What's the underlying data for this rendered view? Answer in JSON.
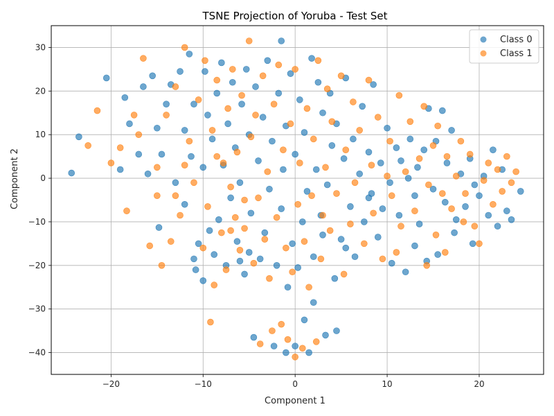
{
  "chart_data": {
    "type": "scatter",
    "title": "TSNE Projection of Yoruba - Test Set",
    "xlabel": "Component 1",
    "ylabel": "Component 2",
    "xlim": [
      -26.5,
      27
    ],
    "ylim": [
      -45,
      35
    ],
    "xticks": [
      -20,
      -10,
      0,
      10,
      20
    ],
    "yticks": [
      -40,
      -30,
      -20,
      -10,
      0,
      10,
      20,
      30
    ],
    "grid": true,
    "legend_position": "top-right",
    "series": [
      {
        "name": "Class 0",
        "color": "#1f77b4",
        "points": [
          [
            -24.3,
            1.2
          ],
          [
            -23.5,
            9.5
          ],
          [
            -20.5,
            23.0
          ],
          [
            -18.5,
            18.5
          ],
          [
            -18.0,
            12.5
          ],
          [
            -17.0,
            5.5
          ],
          [
            -16.5,
            21.0
          ],
          [
            -15.5,
            23.5
          ],
          [
            -15.0,
            11.5
          ],
          [
            -14.8,
            -11.3
          ],
          [
            -14.5,
            5.5
          ],
          [
            -14.0,
            17.0
          ],
          [
            -13.5,
            21.5
          ],
          [
            -13.0,
            -1.0
          ],
          [
            -12.5,
            24.5
          ],
          [
            -12.0,
            11.0
          ],
          [
            -11.5,
            28.5
          ],
          [
            -11.3,
            5.0
          ],
          [
            -11.0,
            17.0
          ],
          [
            -10.8,
            -21.0
          ],
          [
            -10.5,
            -15.0
          ],
          [
            -10.0,
            -23.5
          ],
          [
            -10.0,
            2.5
          ],
          [
            -9.8,
            24.5
          ],
          [
            -9.5,
            14.5
          ],
          [
            -9.3,
            -12.0
          ],
          [
            -9.0,
            9.0
          ],
          [
            -8.8,
            -17.5
          ],
          [
            -8.5,
            19.5
          ],
          [
            -8.3,
            -9.5
          ],
          [
            -8.0,
            26.5
          ],
          [
            -7.8,
            3.0
          ],
          [
            -7.5,
            -20.0
          ],
          [
            -7.3,
            12.5
          ],
          [
            -7.0,
            -4.5
          ],
          [
            -6.8,
            22.0
          ],
          [
            -6.5,
            7.0
          ],
          [
            -6.3,
            -14.5
          ],
          [
            -6.0,
            -1.0
          ],
          [
            -5.8,
            17.0
          ],
          [
            -5.5,
            -22.0
          ],
          [
            -5.3,
            25.0
          ],
          [
            -5.0,
            10.0
          ],
          [
            -4.8,
            -8.0
          ],
          [
            -4.5,
            -36.5
          ],
          [
            -4.3,
            21.0
          ],
          [
            -4.0,
            4.0
          ],
          [
            -3.8,
            -18.5
          ],
          [
            -3.5,
            14.0
          ],
          [
            -3.3,
            -12.5
          ],
          [
            -3.0,
            27.0
          ],
          [
            -2.8,
            -2.5
          ],
          [
            -2.5,
            8.5
          ],
          [
            -2.3,
            -38.5
          ],
          [
            -2.0,
            -20.0
          ],
          [
            -1.8,
            19.5
          ],
          [
            -1.5,
            31.5
          ],
          [
            -1.5,
            -7.0
          ],
          [
            -1.3,
            2.0
          ],
          [
            -1.0,
            -40.0
          ],
          [
            -1.0,
            12.0
          ],
          [
            -0.8,
            -25.0
          ],
          [
            -0.5,
            24.0
          ],
          [
            -0.3,
            -15.0
          ],
          [
            0.0,
            5.5
          ],
          [
            0.0,
            -38.5
          ],
          [
            0.3,
            -20.5
          ],
          [
            0.5,
            18.0
          ],
          [
            0.8,
            -10.0
          ],
          [
            1.0,
            -32.5
          ],
          [
            1.0,
            10.5
          ],
          [
            1.3,
            -3.0
          ],
          [
            1.5,
            -40.0
          ],
          [
            1.8,
            27.5
          ],
          [
            2.0,
            -28.5
          ],
          [
            2.0,
            -18.0
          ],
          [
            2.3,
            2.0
          ],
          [
            2.5,
            22.0
          ],
          [
            2.8,
            -8.5
          ],
          [
            3.0,
            15.0
          ],
          [
            3.3,
            -36.0
          ],
          [
            3.5,
            -1.5
          ],
          [
            3.8,
            19.5
          ],
          [
            4.0,
            7.5
          ],
          [
            4.3,
            -23.0
          ],
          [
            4.5,
            -35.0
          ],
          [
            4.5,
            12.5
          ],
          [
            5.0,
            -14.0
          ],
          [
            5.3,
            4.5
          ],
          [
            5.5,
            23.0
          ],
          [
            6.0,
            -6.5
          ],
          [
            6.3,
            9.0
          ],
          [
            6.5,
            -18.0
          ],
          [
            7.0,
            1.0
          ],
          [
            7.3,
            16.5
          ],
          [
            7.5,
            -10.0
          ],
          [
            8.0,
            6.0
          ],
          [
            8.3,
            -3.5
          ],
          [
            8.5,
            21.5
          ],
          [
            9.0,
            -13.5
          ],
          [
            9.3,
            3.5
          ],
          [
            9.5,
            -7.0
          ],
          [
            10.0,
            11.5
          ],
          [
            10.3,
            -1.0
          ],
          [
            10.5,
            -19.5
          ],
          [
            11.0,
            7.0
          ],
          [
            11.3,
            -8.5
          ],
          [
            11.5,
            4.0
          ],
          [
            12.0,
            -21.5
          ],
          [
            12.3,
            0.0
          ],
          [
            12.5,
            9.0
          ],
          [
            13.0,
            -15.5
          ],
          [
            13.3,
            2.5
          ],
          [
            13.5,
            -10.5
          ],
          [
            14.0,
            6.5
          ],
          [
            14.3,
            -19.0
          ],
          [
            14.5,
            16.0
          ],
          [
            15.0,
            -2.5
          ],
          [
            15.3,
            8.5
          ],
          [
            15.5,
            -17.5
          ],
          [
            16.0,
            15.5
          ],
          [
            16.3,
            -5.5
          ],
          [
            16.5,
            3.5
          ],
          [
            17.0,
            11.0
          ],
          [
            17.3,
            -12.5
          ],
          [
            17.5,
            -9.5
          ],
          [
            18.0,
            1.0
          ],
          [
            18.5,
            -6.5
          ],
          [
            19.0,
            4.5
          ],
          [
            19.3,
            -15.0
          ],
          [
            19.5,
            -1.5
          ],
          [
            20.0,
            -4.0
          ],
          [
            20.5,
            0.5
          ],
          [
            21.0,
            -8.5
          ],
          [
            21.5,
            6.5
          ],
          [
            22.0,
            -11.0
          ],
          [
            22.5,
            2.0
          ],
          [
            23.0,
            -7.5
          ],
          [
            23.5,
            -9.5
          ],
          [
            24.5,
            -3.0
          ],
          [
            -19.0,
            2.0
          ],
          [
            -16.0,
            1.0
          ],
          [
            -12.0,
            -6.0
          ],
          [
            -11.0,
            -18.5
          ],
          [
            -6.0,
            -19.0
          ],
          [
            -5.0,
            -17.0
          ],
          [
            3.0,
            -13.0
          ],
          [
            5.5,
            -16.0
          ],
          [
            8.0,
            -4.5
          ],
          [
            13.0,
            -4.0
          ]
        ]
      },
      {
        "name": "Class 1",
        "color": "#ff7f0e",
        "points": [
          [
            -22.5,
            7.5
          ],
          [
            -21.5,
            15.5
          ],
          [
            -20.0,
            3.5
          ],
          [
            -19.0,
            7.0
          ],
          [
            -18.3,
            -7.5
          ],
          [
            -17.5,
            14.5
          ],
          [
            -17.0,
            10.0
          ],
          [
            -16.5,
            27.5
          ],
          [
            -15.8,
            -15.5
          ],
          [
            -15.0,
            2.5
          ],
          [
            -14.5,
            -20.0
          ],
          [
            -14.0,
            14.5
          ],
          [
            -13.5,
            -14.5
          ],
          [
            -13.0,
            21.0
          ],
          [
            -12.5,
            -8.5
          ],
          [
            -12.0,
            30.0
          ],
          [
            -11.5,
            8.5
          ],
          [
            -11.0,
            -1.0
          ],
          [
            -10.5,
            18.0
          ],
          [
            -10.0,
            -16.0
          ],
          [
            -9.8,
            27.0
          ],
          [
            -9.5,
            -6.5
          ],
          [
            -9.2,
            -33.0
          ],
          [
            -9.0,
            11.0
          ],
          [
            -8.8,
            -24.5
          ],
          [
            -8.5,
            22.5
          ],
          [
            -8.0,
            -12.5
          ],
          [
            -7.8,
            3.5
          ],
          [
            -7.5,
            -21.0
          ],
          [
            -7.3,
            16.0
          ],
          [
            -7.0,
            -2.0
          ],
          [
            -6.8,
            25.0
          ],
          [
            -6.5,
            -9.0
          ],
          [
            -6.3,
            6.0
          ],
          [
            -6.0,
            -16.5
          ],
          [
            -5.8,
            19.0
          ],
          [
            -5.5,
            -11.5
          ],
          [
            -5.0,
            31.5
          ],
          [
            -4.8,
            9.5
          ],
          [
            -4.5,
            -19.5
          ],
          [
            -4.3,
            14.5
          ],
          [
            -4.0,
            -4.5
          ],
          [
            -3.8,
            -38.0
          ],
          [
            -3.5,
            23.5
          ],
          [
            -3.3,
            -14.0
          ],
          [
            -3.0,
            1.5
          ],
          [
            -2.8,
            -23.0
          ],
          [
            -2.5,
            -35.0
          ],
          [
            -2.3,
            17.0
          ],
          [
            -2.0,
            -9.0
          ],
          [
            -1.8,
            26.0
          ],
          [
            -1.5,
            -33.5
          ],
          [
            -1.3,
            6.5
          ],
          [
            -1.0,
            -16.0
          ],
          [
            -0.8,
            -37.0
          ],
          [
            -0.5,
            12.5
          ],
          [
            -0.3,
            -21.5
          ],
          [
            0.0,
            -41.0
          ],
          [
            0.0,
            25.0
          ],
          [
            0.3,
            -6.0
          ],
          [
            0.5,
            3.5
          ],
          [
            0.8,
            -39.0
          ],
          [
            1.0,
            -14.5
          ],
          [
            1.3,
            16.0
          ],
          [
            1.5,
            -25.0
          ],
          [
            1.8,
            -4.0
          ],
          [
            2.0,
            9.0
          ],
          [
            2.3,
            -37.5
          ],
          [
            2.5,
            27.0
          ],
          [
            2.8,
            -18.5
          ],
          [
            3.0,
            -8.5
          ],
          [
            3.3,
            2.5
          ],
          [
            3.5,
            20.5
          ],
          [
            3.8,
            -12.0
          ],
          [
            4.0,
            13.0
          ],
          [
            4.5,
            -3.5
          ],
          [
            5.0,
            23.5
          ],
          [
            5.3,
            -22.0
          ],
          [
            5.5,
            6.5
          ],
          [
            6.0,
            -10.5
          ],
          [
            6.3,
            17.5
          ],
          [
            6.5,
            -1.0
          ],
          [
            7.0,
            11.0
          ],
          [
            7.5,
            -15.0
          ],
          [
            8.0,
            22.5
          ],
          [
            8.3,
            3.0
          ],
          [
            8.5,
            -8.0
          ],
          [
            9.0,
            14.0
          ],
          [
            9.5,
            -18.5
          ],
          [
            10.0,
            0.5
          ],
          [
            10.3,
            8.5
          ],
          [
            10.5,
            -4.0
          ],
          [
            11.0,
            -17.0
          ],
          [
            11.3,
            19.0
          ],
          [
            11.5,
            -11.0
          ],
          [
            12.0,
            1.5
          ],
          [
            12.5,
            13.0
          ],
          [
            13.0,
            -7.5
          ],
          [
            13.5,
            4.5
          ],
          [
            14.0,
            16.5
          ],
          [
            14.3,
            -20.0
          ],
          [
            14.5,
            -1.5
          ],
          [
            15.0,
            7.5
          ],
          [
            15.3,
            -13.0
          ],
          [
            15.5,
            12.0
          ],
          [
            16.0,
            -3.5
          ],
          [
            16.3,
            -17.0
          ],
          [
            16.5,
            5.0
          ],
          [
            17.0,
            -7.0
          ],
          [
            17.5,
            0.5
          ],
          [
            18.0,
            8.5
          ],
          [
            18.3,
            -10.0
          ],
          [
            18.5,
            -3.5
          ],
          [
            19.0,
            5.5
          ],
          [
            19.5,
            -11.0
          ],
          [
            20.0,
            -15.0
          ],
          [
            20.5,
            -0.5
          ],
          [
            21.0,
            3.5
          ],
          [
            21.5,
            -6.0
          ],
          [
            22.0,
            2.0
          ],
          [
            22.5,
            -3.0
          ],
          [
            23.0,
            5.0
          ],
          [
            23.5,
            -1.0
          ],
          [
            24.0,
            1.5
          ],
          [
            -15.0,
            -4.0
          ],
          [
            -13.0,
            -4.0
          ],
          [
            -12.0,
            3.0
          ],
          [
            -8.5,
            5.0
          ],
          [
            -7.0,
            -12.0
          ],
          [
            -5.5,
            -5.0
          ]
        ]
      }
    ]
  }
}
